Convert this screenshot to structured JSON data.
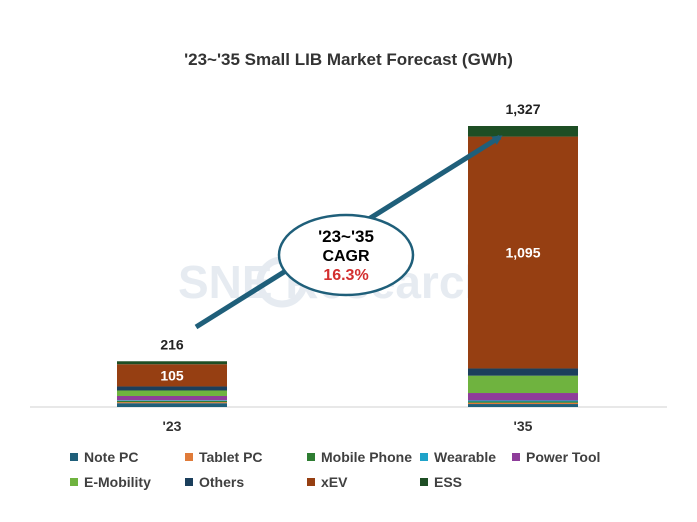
{
  "chart_data": {
    "type": "bar",
    "stacked": true,
    "title": "'23~'35 Small LIB Market Forecast (GWh)",
    "categories": [
      "'23",
      "'35"
    ],
    "totals": [
      "216",
      "1,327"
    ],
    "ylim": [
      0,
      1400
    ],
    "series": [
      {
        "name": "Note PC",
        "color": "#1f5f7a",
        "values": [
          18,
          14
        ]
      },
      {
        "name": "Tablet PC",
        "color": "#e07b39",
        "values": [
          5,
          6
        ]
      },
      {
        "name": "Mobile Phone",
        "color": "#2e7d32",
        "values": [
          6,
          6
        ]
      },
      {
        "name": "Wearable",
        "color": "#1fa3c9",
        "values": [
          3,
          5
        ]
      },
      {
        "name": "Power Tool",
        "color": "#8e3d9a",
        "values": [
          20,
          35
        ]
      },
      {
        "name": "E-Mobility",
        "color": "#6fb33f",
        "values": [
          26,
          82
        ]
      },
      {
        "name": "Others",
        "color": "#1b3f5c",
        "values": [
          19,
          34
        ]
      },
      {
        "name": "xEV",
        "color": "#963f12",
        "values": [
          105,
          1095
        ]
      },
      {
        "name": "ESS",
        "color": "#1e4e24",
        "values": [
          14,
          50
        ]
      }
    ],
    "segment_labels": [
      {
        "category": 0,
        "series": 7,
        "text": "105"
      },
      {
        "category": 1,
        "series": 7,
        "text": "1,095"
      }
    ],
    "annotation": {
      "line1": "'23~'35",
      "line2": "CAGR",
      "line3": "16.3%",
      "line3_color": "#d32f2f"
    },
    "watermark": "SNE Research",
    "legend_position": "bottom",
    "legend_rows": [
      [
        "Note PC",
        "Tablet PC",
        "Mobile Phone",
        "Wearable",
        "Power Tool"
      ],
      [
        "E-Mobility",
        "Others",
        "xEV",
        "ESS"
      ]
    ]
  }
}
